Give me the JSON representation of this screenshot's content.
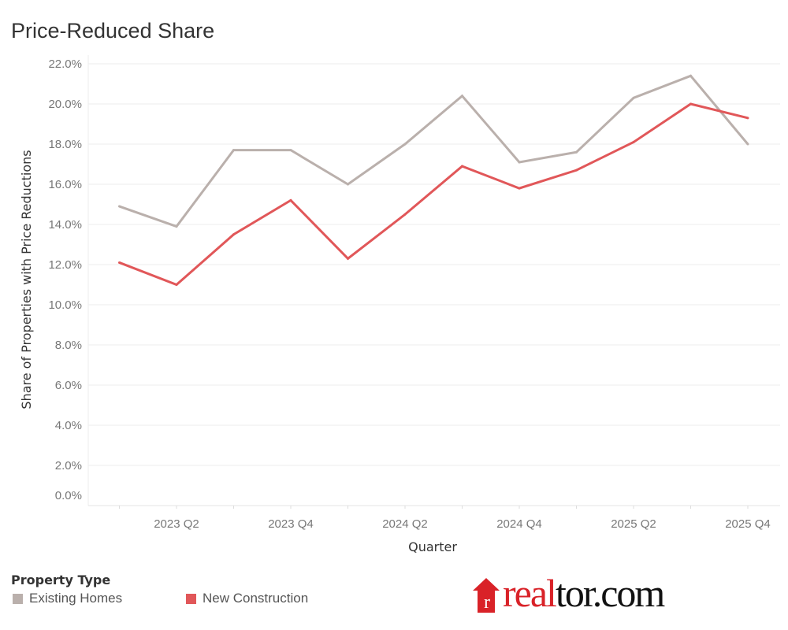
{
  "title": "Price-Reduced Share",
  "chart_data": {
    "type": "line",
    "title": "Price-Reduced Share",
    "xlabel": "Quarter",
    "ylabel": "Share of Properties with Price Reductions",
    "ylim": [
      0,
      22
    ],
    "yticks": [
      "0.0%",
      "2.0%",
      "4.0%",
      "6.0%",
      "8.0%",
      "10.0%",
      "12.0%",
      "14.0%",
      "16.0%",
      "18.0%",
      "20.0%",
      "22.0%"
    ],
    "x": [
      "2023 Q1",
      "2023 Q2",
      "2023 Q3",
      "2023 Q4",
      "2024 Q1",
      "2024 Q2",
      "2024 Q3",
      "2024 Q4",
      "2025 Q1",
      "2025 Q2",
      "2025 Q3",
      "2025 Q4"
    ],
    "xtick_labels": [
      "2023 Q2",
      "2023 Q4",
      "2024 Q2",
      "2024 Q4",
      "2025 Q2",
      "2025 Q4"
    ],
    "grid": true,
    "legend_title": "Property Type",
    "legend_position": "bottom-left",
    "series": [
      {
        "name": "Existing Homes",
        "color": "#BAB0AC",
        "values": [
          14.9,
          13.9,
          17.7,
          17.7,
          16.0,
          18.0,
          20.4,
          17.1,
          17.6,
          20.3,
          21.4,
          18.0
        ]
      },
      {
        "name": "New Construction",
        "color": "#E15759",
        "values": [
          12.1,
          11.0,
          13.5,
          15.2,
          12.3,
          14.5,
          16.9,
          15.8,
          16.7,
          18.1,
          20.0,
          19.3
        ]
      }
    ]
  },
  "logo": {
    "part1": "real",
    "part2": "tor.com",
    "mark": "r"
  }
}
